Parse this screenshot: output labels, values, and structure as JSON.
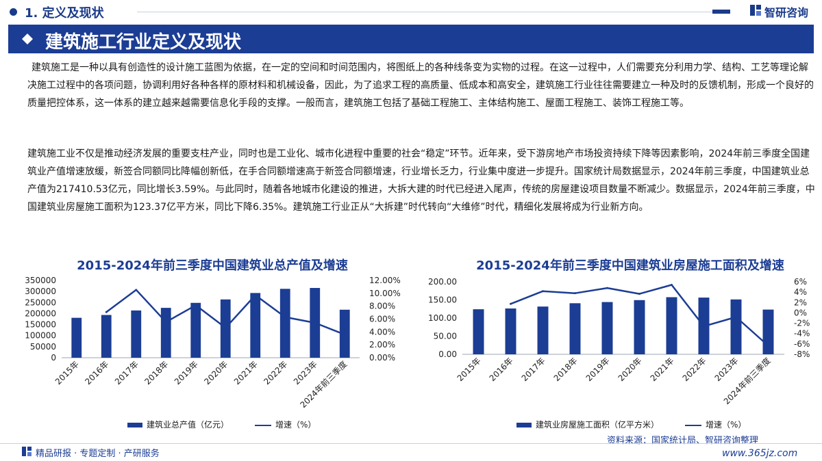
{
  "header": {
    "section_title": "1. 定义及现状",
    "logo_text": "智研咨询",
    "banner_title": "建筑施工行业定义及现状"
  },
  "body": {
    "paragraph1": "建筑施工是一种以具有创造性的设计施工蓝图为依据，在一定的空间和时间范围内，将图纸上的各种线条变为实物的过程。在这一过程中，人们需要充分利用力学、结构、工艺等理论解决施工过程中的各项问题，协调利用好各种各样的原材料和机械设备，因此，为了追求工程的高质量、低成本和高安全，建筑施工行业往往需要建立一种及时的反馈机制，形成一个良好的质量把控体系，这一体系的建立越来越需要信息化手段的支撑。一般而言，建筑施工包括了基础工程施工、主体结构施工、屋面工程施工、装饰工程施工等。",
    "paragraph2": "建筑施工业不仅是推动经济发展的重要支柱产业，同时也是工业化、城市化进程中重要的社会“稳定”环节。近年来，受下游房地产市场投资持续下降等因素影响，2024年前三季度全国建筑业产值增速放缓，新签合同额同比降幅创新低，在手合同额增速高于新签合同额增速，行业增长乏力，行业集中度进一步提升。国家统计局数据显示，2024年前三季度，中国建筑业总产值为217410.53亿元，同比增长3.59%。与此同时，随着各地城市化建设的推进，大拆大建的时代已经进入尾声，传统的房屋建设项目数量不断减少。数据显示，2024年前三季度，中国建筑业房屋施工面积为123.37亿平方米，同比下降6.35%。建筑施工行业正从“大拆建”时代转向“大维修”时代，精细化发展将成为行业新方向。"
  },
  "colors": {
    "brand": "#1c3d94",
    "accent_dark": "#1a3a8a"
  },
  "chart_data": [
    {
      "type": "bar",
      "title": "2015-2024年前三季度中国建筑业总产值及增速",
      "categories": [
        "2015年",
        "2016年",
        "2017年",
        "2018年",
        "2019年",
        "2020年",
        "2021年",
        "2022年",
        "2023年",
        "2024年前三季度"
      ],
      "series": [
        {
          "name": "建筑业总产值（亿元）",
          "type": "bar",
          "axis": "left",
          "values": [
            180757,
            193567,
            213954,
            225817,
            248446,
            263947,
            293079,
            311980,
            315912,
            217411
          ]
        },
        {
          "name": "增速（%）",
          "type": "line",
          "axis": "right",
          "values": [
            null,
            7.09,
            10.53,
            5.54,
            8.14,
            4.64,
            9.72,
            6.31,
            5.42,
            3.59
          ]
        }
      ],
      "y_left": {
        "ticks": [
          "350000",
          "300000",
          "250000",
          "200000",
          "150000",
          "100000",
          "50000",
          "0"
        ],
        "ylim": [
          0,
          350000
        ]
      },
      "y_right": {
        "ticks": [
          "12.00%",
          "10.00%",
          "8.00%",
          "6.00%",
          "4.00%",
          "2.00%",
          "0.00%"
        ],
        "ylim": [
          0,
          12
        ]
      },
      "legend": "bottom"
    },
    {
      "type": "bar",
      "title": "2015-2024年前三季度中国建筑业房屋施工面积及增速",
      "categories": [
        "2015年",
        "2016年",
        "2017年",
        "2018年",
        "2019年",
        "2020年",
        "2021年",
        "2022年",
        "2023年",
        "2024年前三季度"
      ],
      "series": [
        {
          "name": "建筑业房屋施工面积（亿平方米）",
          "type": "bar",
          "axis": "left",
          "values": [
            124.26,
            126.42,
            131.72,
            140.89,
            144.16,
            149.47,
            157.55,
            156.45,
            151.34,
            123.37
          ]
        },
        {
          "name": "增速（%）",
          "type": "line",
          "axis": "right",
          "values": [
            null,
            1.74,
            4.19,
            3.8,
            4.8,
            3.68,
            5.41,
            -2.6,
            -0.8,
            -6.35
          ]
        }
      ],
      "y_left": {
        "ticks": [
          "200.00",
          "150.00",
          "100.00",
          "50.00",
          "0.00"
        ],
        "ylim": [
          0,
          200
        ]
      },
      "y_right": {
        "ticks": [
          "6%",
          "4%",
          "2%",
          "0%",
          "-2%",
          "-4%",
          "-6%",
          "-8%"
        ],
        "ylim": [
          -8,
          6
        ]
      },
      "legend": "bottom"
    }
  ],
  "footer": {
    "source": "资料来源：国家统计局、智研咨询整理",
    "tagline": "精品研报 · 专题定制 · 产研服务",
    "watermark": "www.365jz.com"
  }
}
